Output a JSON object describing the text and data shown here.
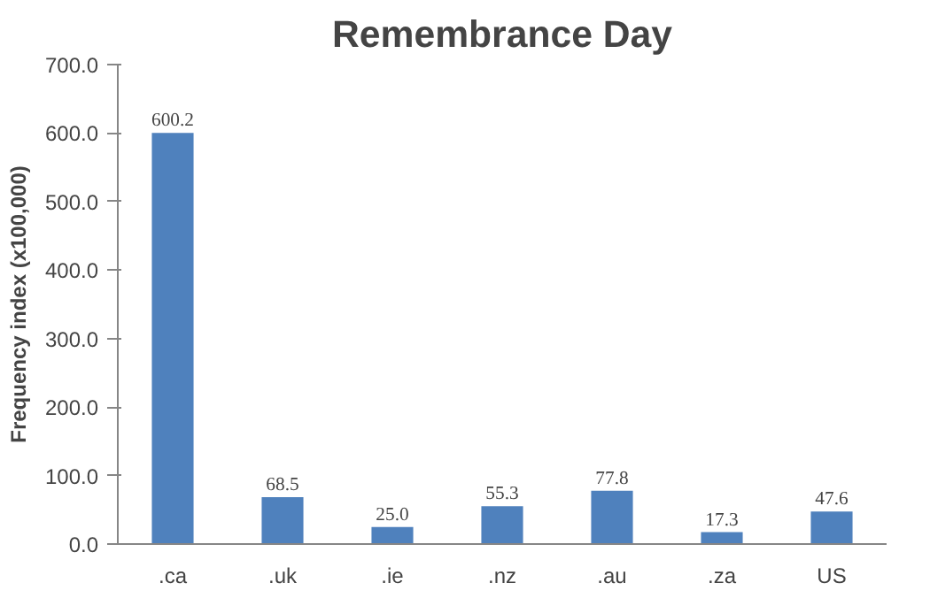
{
  "chart_data": {
    "type": "bar",
    "title": "Remembrance Day",
    "ylabel": "Frequency index (x100,000)",
    "categories": [
      ".ca",
      ".uk",
      ".ie",
      ".nz",
      ".au",
      ".za",
      "US"
    ],
    "values": [
      600.2,
      68.5,
      25.0,
      55.3,
      77.8,
      17.3,
      47.6
    ],
    "value_labels": [
      "600.2",
      "68.5",
      "25.0",
      "55.3",
      "77.8",
      "17.3",
      "47.6"
    ],
    "color": "#4f81bd",
    "ylim": [
      0,
      700
    ],
    "yticks": [
      {
        "value": 0,
        "label": "0.0"
      },
      {
        "value": 100,
        "label": "100.0"
      },
      {
        "value": 200,
        "label": "200.0"
      },
      {
        "value": 300,
        "label": "300.0"
      },
      {
        "value": 400,
        "label": "400.0"
      },
      {
        "value": 500,
        "label": "500.0"
      },
      {
        "value": 600,
        "label": "600.0"
      },
      {
        "value": 700,
        "label": "700.0"
      }
    ],
    "grid": false
  }
}
